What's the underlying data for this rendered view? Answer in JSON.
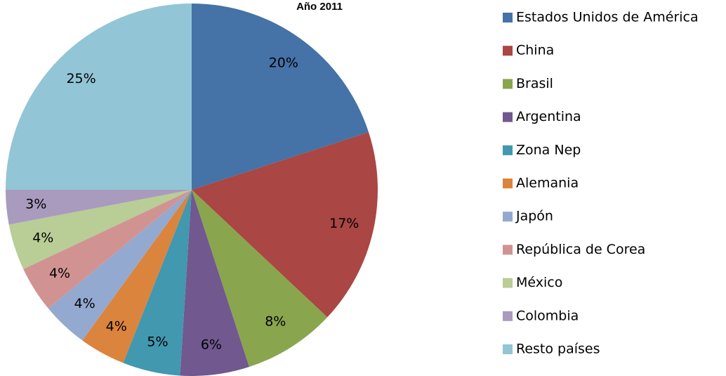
{
  "chart_data": {
    "type": "pie",
    "title": "Año 2011",
    "categories": [
      "Estados Unidos de América",
      "China",
      "Brasil",
      "Argentina",
      "Zona Nep",
      "Alemania",
      "Japón",
      "República de Corea",
      "México",
      "Colombia",
      "Resto países"
    ],
    "values": [
      20,
      17,
      8,
      6,
      5,
      4,
      4,
      4,
      4,
      3,
      25
    ],
    "value_labels": [
      "20%",
      "17%",
      "8%",
      "6%",
      "5%",
      "4%",
      "4%",
      "4%",
      "4%",
      "3%",
      "25%"
    ],
    "colors": [
      "#4572A7",
      "#AA4643",
      "#89A54E",
      "#71588F",
      "#4198AF",
      "#DB843D",
      "#93A9CF",
      "#D19392",
      "#B9CD96",
      "#A99BBD",
      "#92C5D6"
    ],
    "legend": "right"
  }
}
